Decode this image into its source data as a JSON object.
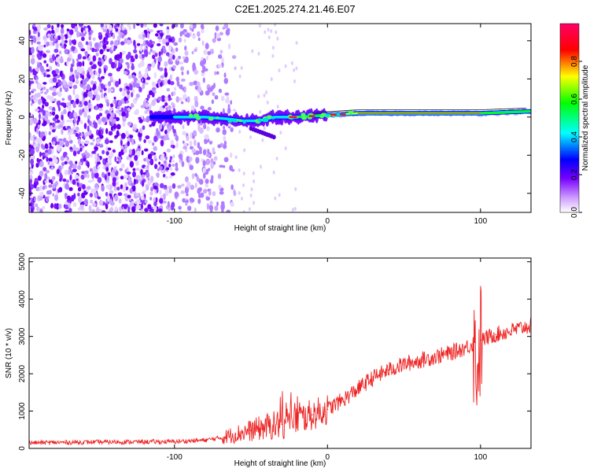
{
  "title": "C2E1.2025.274.21.46.E07",
  "chart_data": [
    {
      "type": "heatmap",
      "xlabel": "Height of straight line (km)",
      "ylabel": "Frequency (Hz)",
      "xlim": [
        -195,
        133
      ],
      "ylim": [
        -50,
        49
      ],
      "xticks": [
        -100,
        0,
        100
      ],
      "yticks": [
        -40,
        -20,
        0,
        20,
        40
      ],
      "description_series": [
        {
          "name": "doppler_ridge",
          "x": [
            -115,
            -100,
            -80,
            -65,
            -55,
            -45,
            -35,
            -20,
            0,
            20,
            60,
            100,
            133
          ],
          "y": [
            0,
            0,
            0,
            -1,
            -2,
            -2,
            0,
            0,
            1,
            2,
            2,
            2,
            3
          ]
        }
      ],
      "colorbar": {
        "label": "Normalized spectral amplitude",
        "range": [
          0.0,
          1.0
        ],
        "ticks": [
          "0.0",
          "0.2",
          "0.4",
          "0.6",
          "0.8"
        ],
        "colors": [
          "#ffffff",
          "#cc99ff",
          "#7700ff",
          "#0000ff",
          "#00ffff",
          "#00ff00",
          "#ffff00",
          "#ff0000",
          "#ff0066"
        ]
      }
    },
    {
      "type": "line",
      "xlabel": "Height of straight line (km)",
      "ylabel": "SNR (10 * v/v)",
      "xlim": [
        -195,
        133
      ],
      "ylim": [
        0,
        5100
      ],
      "xticks": [
        -100,
        0,
        100
      ],
      "yticks": [
        0,
        1000,
        2000,
        3000,
        4000,
        5000
      ],
      "series": [
        {
          "name": "SNR",
          "color": "#ee2222",
          "x": [
            -195,
            -150,
            -100,
            -80,
            -70,
            -60,
            -50,
            -40,
            -30,
            -20,
            -10,
            0,
            10,
            20,
            30,
            40,
            50,
            60,
            70,
            80,
            90,
            95,
            98,
            100,
            110,
            120,
            133
          ],
          "y": [
            150,
            170,
            180,
            220,
            280,
            380,
            480,
            580,
            650,
            780,
            900,
            1050,
            1300,
            1600,
            1900,
            2100,
            2250,
            2350,
            2450,
            2550,
            2700,
            2800,
            2200,
            2900,
            3050,
            3150,
            3300
          ]
        }
      ]
    }
  ]
}
